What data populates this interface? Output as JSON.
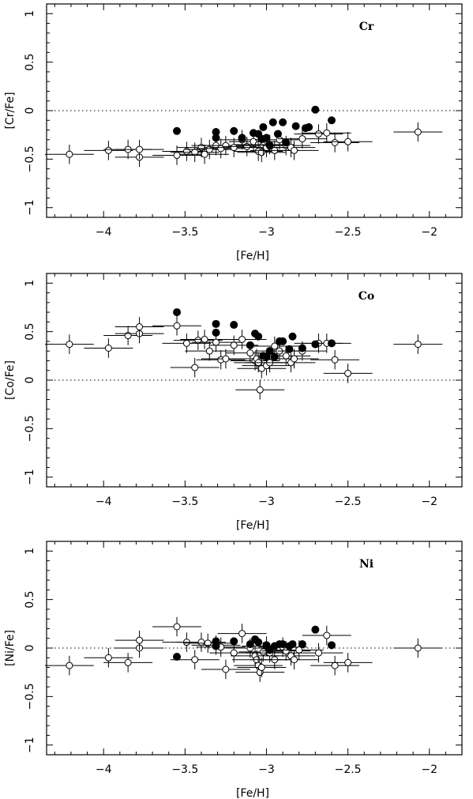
{
  "chart_data": [
    {
      "type": "scatter",
      "element": "Cr",
      "xlabel": "[Fe/H]",
      "ylabel": "[Cr/Fe]",
      "xlim": [
        -4.35,
        -1.8
      ],
      "ylim": [
        -1.1,
        1.1
      ],
      "x_ticks": [
        -4,
        -3.5,
        -3,
        -2.5,
        -2
      ],
      "x_tick_labels": [
        "−4",
        "−3.5",
        "−3",
        "−2.5",
        "−2"
      ],
      "y_ticks": [
        -1,
        -0.5,
        0,
        0.5,
        1
      ],
      "y_tick_labels": [
        "−1",
        "−0.5",
        "0",
        "0.5",
        "1"
      ],
      "reference_line_y": 0,
      "series": [
        {
          "marker": "open-circle-with-errorbars",
          "points": [
            [
              -4.21,
              -0.45
            ],
            [
              -3.97,
              -0.41
            ],
            [
              -3.85,
              -0.4
            ],
            [
              -3.78,
              -0.48
            ],
            [
              -3.78,
              -0.4
            ],
            [
              -3.55,
              -0.46
            ],
            [
              -3.49,
              -0.42
            ],
            [
              -3.44,
              -0.43
            ],
            [
              -3.4,
              -0.38
            ],
            [
              -3.38,
              -0.45
            ],
            [
              -3.35,
              -0.4
            ],
            [
              -3.31,
              -0.36
            ],
            [
              -3.28,
              -0.39
            ],
            [
              -3.25,
              -0.36
            ],
            [
              -3.2,
              -0.38
            ],
            [
              -3.15,
              -0.3
            ],
            [
              -3.12,
              -0.37
            ],
            [
              -3.08,
              -0.32
            ],
            [
              -3.05,
              -0.35
            ],
            [
              -3.05,
              -0.42
            ],
            [
              -3.03,
              -0.43
            ],
            [
              -3.02,
              -0.36
            ],
            [
              -3.0,
              -0.38
            ],
            [
              -2.98,
              -0.35
            ],
            [
              -2.95,
              -0.41
            ],
            [
              -2.92,
              -0.3
            ],
            [
              -2.88,
              -0.36
            ],
            [
              -2.85,
              -0.38
            ],
            [
              -2.83,
              -0.41
            ],
            [
              -2.78,
              -0.29
            ],
            [
              -2.68,
              -0.24
            ],
            [
              -2.63,
              -0.23
            ],
            [
              -2.58,
              -0.33
            ],
            [
              -2.5,
              -0.32
            ],
            [
              -2.07,
              -0.22
            ]
          ]
        },
        {
          "marker": "filled-circle",
          "points": [
            [
              -3.55,
              -0.21
            ],
            [
              -3.31,
              -0.22
            ],
            [
              -3.31,
              -0.28
            ],
            [
              -3.2,
              -0.21
            ],
            [
              -3.15,
              -0.28
            ],
            [
              -3.08,
              -0.23
            ],
            [
              -3.05,
              -0.24
            ],
            [
              -3.03,
              -0.29
            ],
            [
              -3.02,
              -0.17
            ],
            [
              -3.0,
              -0.28
            ],
            [
              -2.98,
              -0.36
            ],
            [
              -2.96,
              -0.12
            ],
            [
              -2.93,
              -0.24
            ],
            [
              -2.9,
              -0.12
            ],
            [
              -2.88,
              -0.33
            ],
            [
              -2.82,
              -0.16
            ],
            [
              -2.76,
              -0.18
            ],
            [
              -2.74,
              -0.17
            ],
            [
              -2.7,
              0.01
            ],
            [
              -2.6,
              -0.1
            ]
          ]
        }
      ]
    },
    {
      "type": "scatter",
      "element": "Co",
      "xlabel": "[Fe/H]",
      "ylabel": "[Co/Fe]",
      "xlim": [
        -4.35,
        -1.8
      ],
      "ylim": [
        -1.1,
        1.1
      ],
      "x_ticks": [
        -4,
        -3.5,
        -3,
        -2.5,
        -2
      ],
      "x_tick_labels": [
        "−4",
        "−3.5",
        "−3",
        "−2.5",
        "−2"
      ],
      "y_ticks": [
        -1,
        -0.5,
        0,
        0.5,
        1
      ],
      "y_tick_labels": [
        "−1",
        "−0.5",
        "0",
        "0.5",
        "1"
      ],
      "reference_line_y": 0,
      "series": [
        {
          "marker": "open-circle-with-errorbars",
          "points": [
            [
              -4.21,
              0.37
            ],
            [
              -3.97,
              0.33
            ],
            [
              -3.85,
              0.46
            ],
            [
              -3.78,
              0.48
            ],
            [
              -3.78,
              0.55
            ],
            [
              -3.55,
              0.56
            ],
            [
              -3.49,
              0.38
            ],
            [
              -3.44,
              0.13
            ],
            [
              -3.42,
              0.41
            ],
            [
              -3.38,
              0.42
            ],
            [
              -3.35,
              0.3
            ],
            [
              -3.31,
              0.39
            ],
            [
              -3.28,
              0.21
            ],
            [
              -3.25,
              0.22
            ],
            [
              -3.2,
              0.36
            ],
            [
              -3.15,
              0.42
            ],
            [
              -3.1,
              0.28
            ],
            [
              -3.07,
              0.2
            ],
            [
              -3.06,
              0.22
            ],
            [
              -3.05,
              0.18
            ],
            [
              -3.04,
              -0.1
            ],
            [
              -3.03,
              0.12
            ],
            [
              -3.0,
              0.15
            ],
            [
              -2.98,
              0.18
            ],
            [
              -2.95,
              0.35
            ],
            [
              -2.92,
              0.3
            ],
            [
              -2.88,
              0.25
            ],
            [
              -2.85,
              0.18
            ],
            [
              -2.83,
              0.22
            ],
            [
              -2.78,
              0.3
            ],
            [
              -2.68,
              0.38
            ],
            [
              -2.63,
              0.38
            ],
            [
              -2.58,
              0.21
            ],
            [
              -2.5,
              0.07
            ],
            [
              -2.07,
              0.37
            ]
          ]
        },
        {
          "marker": "filled-circle",
          "points": [
            [
              -3.55,
              0.7
            ],
            [
              -3.31,
              0.58
            ],
            [
              -3.31,
              0.49
            ],
            [
              -3.2,
              0.57
            ],
            [
              -3.1,
              0.36
            ],
            [
              -3.07,
              0.48
            ],
            [
              -3.05,
              0.45
            ],
            [
              -3.02,
              0.25
            ],
            [
              -3.0,
              0.24
            ],
            [
              -2.98,
              0.3
            ],
            [
              -2.95,
              0.24
            ],
            [
              -2.92,
              0.4
            ],
            [
              -2.9,
              0.4
            ],
            [
              -2.86,
              0.32
            ],
            [
              -2.84,
              0.45
            ],
            [
              -2.78,
              0.33
            ],
            [
              -2.7,
              0.37
            ],
            [
              -2.6,
              0.38
            ]
          ]
        }
      ]
    },
    {
      "type": "scatter",
      "element": "Ni",
      "xlabel": "[Fe/H]",
      "ylabel": "[Ni/Fe]",
      "xlim": [
        -4.35,
        -1.8
      ],
      "ylim": [
        -1.1,
        1.1
      ],
      "x_ticks": [
        -4,
        -3.5,
        -3,
        -2.5,
        -2
      ],
      "x_tick_labels": [
        "−4",
        "−3.5",
        "−3",
        "−2.5",
        "−2"
      ],
      "y_ticks": [
        -1,
        -0.5,
        0,
        0.5,
        1
      ],
      "y_tick_labels": [
        "−1",
        "−0.5",
        "0",
        "0.5",
        "1"
      ],
      "reference_line_y": 0,
      "series": [
        {
          "marker": "open-circle-with-errorbars",
          "points": [
            [
              -4.21,
              -0.18
            ],
            [
              -3.97,
              -0.1
            ],
            [
              -3.85,
              -0.15
            ],
            [
              -3.78,
              0.0
            ],
            [
              -3.78,
              0.08
            ],
            [
              -3.55,
              0.22
            ],
            [
              -3.49,
              0.06
            ],
            [
              -3.44,
              -0.12
            ],
            [
              -3.4,
              0.06
            ],
            [
              -3.36,
              0.05
            ],
            [
              -3.31,
              0.03
            ],
            [
              -3.28,
              0.01
            ],
            [
              -3.25,
              -0.22
            ],
            [
              -3.2,
              -0.05
            ],
            [
              -3.15,
              0.15
            ],
            [
              -3.1,
              0.0
            ],
            [
              -3.07,
              -0.08
            ],
            [
              -3.06,
              -0.12
            ],
            [
              -3.05,
              -0.18
            ],
            [
              -3.04,
              -0.25
            ],
            [
              -3.03,
              -0.2
            ],
            [
              -3.02,
              -0.04
            ],
            [
              -3.0,
              0.02
            ],
            [
              -2.98,
              -0.05
            ],
            [
              -2.95,
              -0.12
            ],
            [
              -2.9,
              0.01
            ],
            [
              -2.88,
              -0.03
            ],
            [
              -2.85,
              -0.08
            ],
            [
              -2.83,
              -0.12
            ],
            [
              -2.8,
              -0.02
            ],
            [
              -2.68,
              -0.05
            ],
            [
              -2.63,
              0.13
            ],
            [
              -2.58,
              -0.18
            ],
            [
              -2.5,
              -0.15
            ],
            [
              -2.07,
              0.0
            ]
          ]
        },
        {
          "marker": "filled-circle",
          "points": [
            [
              -3.55,
              -0.09
            ],
            [
              -3.31,
              0.07
            ],
            [
              -3.31,
              0.02
            ],
            [
              -3.2,
              0.07
            ],
            [
              -3.1,
              0.04
            ],
            [
              -3.07,
              0.09
            ],
            [
              -3.05,
              0.06
            ],
            [
              -3.0,
              0.03
            ],
            [
              -2.98,
              -0.02
            ],
            [
              -2.95,
              0.02
            ],
            [
              -2.92,
              0.04
            ],
            [
              -2.9,
              0.04
            ],
            [
              -2.86,
              0.02
            ],
            [
              -2.84,
              0.04
            ],
            [
              -2.78,
              0.04
            ],
            [
              -2.7,
              0.19
            ],
            [
              -2.6,
              0.03
            ]
          ]
        }
      ]
    }
  ]
}
